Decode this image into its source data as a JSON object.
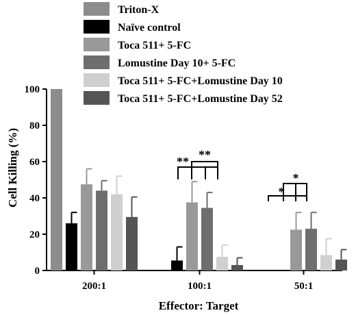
{
  "chart_data": {
    "type": "bar",
    "xlabel": "Effector: Target",
    "ylabel": "Cell Killing (%)",
    "ylim": [
      0,
      100
    ],
    "yticks": [
      "0",
      "20",
      "40",
      "60",
      "80",
      "100"
    ],
    "categories": [
      "200:1",
      "100:1",
      "50:1"
    ],
    "legend_position": "top",
    "series": [
      {
        "name": "Triton-X",
        "color": "#8c8c8c",
        "values": [
          100,
          null,
          null
        ],
        "errors": [
          0,
          null,
          null
        ]
      },
      {
        "name": "Naïve control",
        "color": "#000000",
        "values": [
          26,
          5.5,
          null
        ],
        "errors": [
          6,
          7.5,
          null
        ]
      },
      {
        "name": "Toca 511+ 5-FC",
        "color": "#999999",
        "values": [
          47.5,
          37.5,
          22.5
        ],
        "errors": [
          8.5,
          11.5,
          9.5
        ]
      },
      {
        "name": "Lomustine Day 10+ 5-FC",
        "color": "#6e6e6e",
        "values": [
          44,
          34.5,
          23
        ],
        "errors": [
          5.5,
          8.5,
          9
        ]
      },
      {
        "name": "Toca 511+ 5-FC+Lomustine Day 10",
        "color": "#cfcfcf",
        "values": [
          42,
          7.5,
          8.5
        ],
        "errors": [
          10,
          6.5,
          9
        ]
      },
      {
        "name": "Toca 511+ 5-FC+Lomustine Day 52",
        "color": "#555555",
        "values": [
          29.5,
          3,
          6
        ],
        "errors": [
          11,
          4,
          5.5
        ]
      }
    ],
    "annotations": [
      {
        "category": "100:1",
        "label": "**"
      },
      {
        "category": "100:1",
        "label": "**"
      },
      {
        "category": "50:1",
        "label": "*"
      },
      {
        "category": "50:1",
        "label": "*"
      }
    ]
  }
}
